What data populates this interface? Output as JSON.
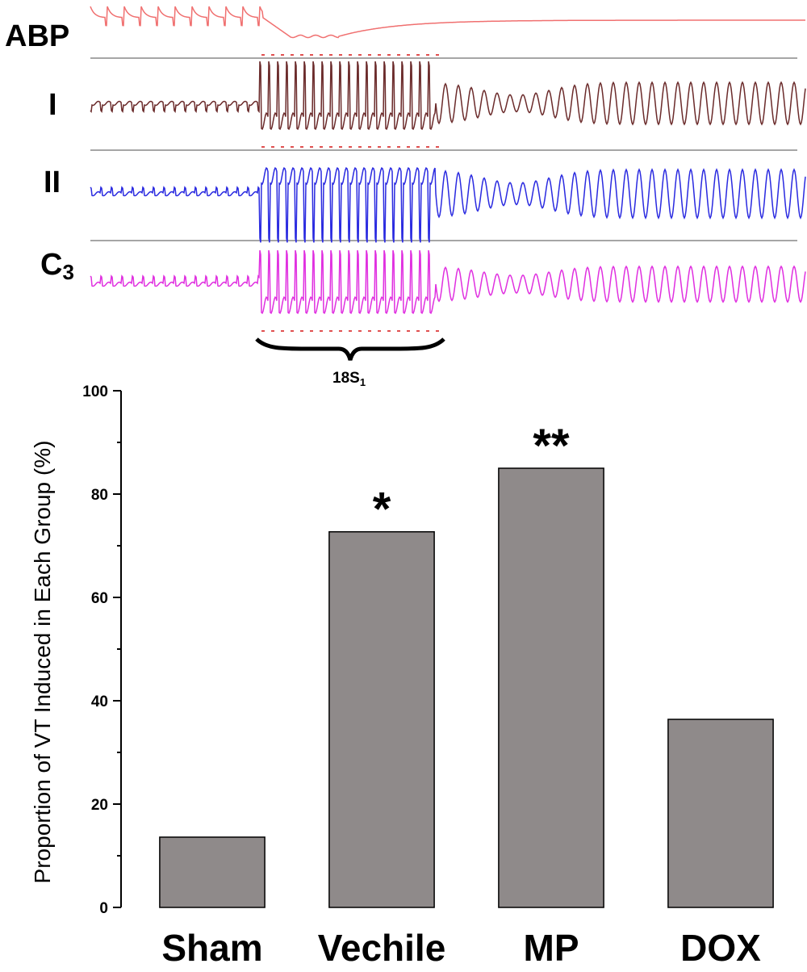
{
  "ecg": {
    "leads": [
      {
        "id": "abp",
        "label": "ABP",
        "sub": "",
        "color": "#f07070"
      },
      {
        "id": "i",
        "label": "I",
        "sub": "",
        "color": "#6b2b2b"
      },
      {
        "id": "ii",
        "label": "II",
        "sub": "",
        "color": "#2a2ae0"
      },
      {
        "id": "c3",
        "label": "C",
        "sub": "3",
        "color": "#e030e0"
      }
    ],
    "stimulus_color": "#e05050",
    "stimulus_label": "18S",
    "stimulus_sub": "1"
  },
  "chart_data": {
    "type": "bar",
    "categories": [
      "Sham",
      "Vechile",
      "MP",
      "DOX"
    ],
    "values": [
      13.6,
      72.7,
      85.0,
      36.4
    ],
    "annotations": [
      "",
      "*",
      "**",
      ""
    ],
    "ylabel": "Proportion of VT Induced in Each Group (%)",
    "xlabel": "",
    "ylim": [
      0,
      100
    ],
    "yticks": [
      0,
      20,
      40,
      60,
      80,
      100
    ],
    "bar_color": "#8f8a8a",
    "grid": false
  }
}
